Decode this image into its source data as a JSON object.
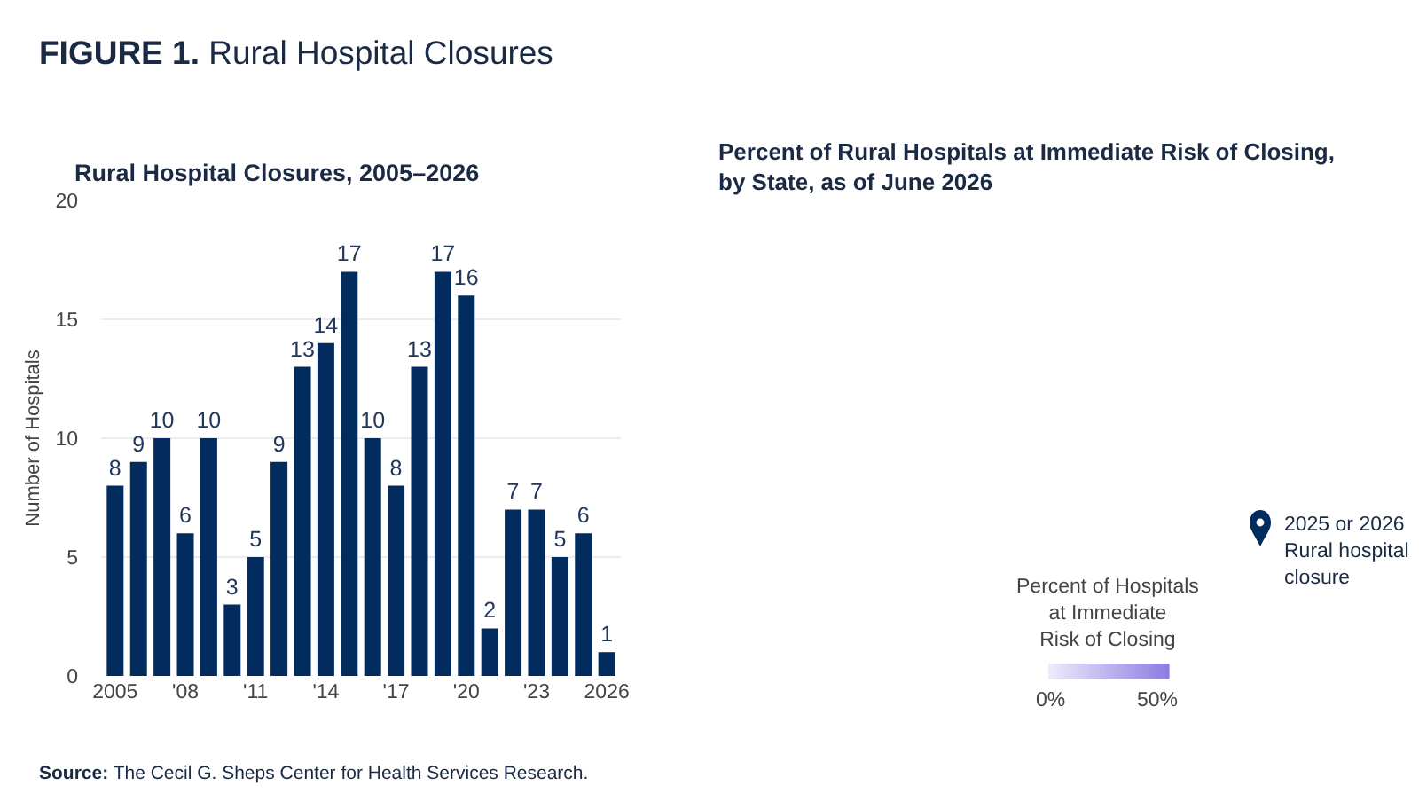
{
  "chart_data": [
    {
      "type": "bar",
      "title": "Rural Hospital Closures, 2005–2026",
      "ylabel": "Number of Hospitals",
      "categories": [
        "2005",
        null,
        null,
        "'08",
        null,
        null,
        "'11",
        null,
        null,
        "'14",
        null,
        null,
        "'17",
        null,
        null,
        "'20",
        null,
        null,
        "'23",
        null,
        null,
        "2026"
      ],
      "values": [
        8,
        9,
        10,
        6,
        10,
        3,
        5,
        9,
        13,
        14,
        17,
        10,
        8,
        13,
        17,
        16,
        2,
        7,
        7,
        5,
        6,
        1
      ],
      "color": "#022b5e",
      "ylim": [
        0,
        20
      ],
      "yticks": [
        0,
        5,
        10,
        15,
        20
      ],
      "grid": "y",
      "data_labels": true,
      "annotations": [
        "FIGURE 1. Rural Hospital Closures",
        "Source: The Cecil G. Sheps Center for Health Services Research."
      ]
    },
    {
      "type": "other",
      "title": "Percent of Rural Hospitals at Immediate Risk of Closing, by State, as of June 2026",
      "annotations": [
        "2025 or 2026 Rural hospital closure",
        "Percent of Hospitals at Immediate Risk of Closing",
        "0%",
        "50%"
      ]
    }
  ]
}
